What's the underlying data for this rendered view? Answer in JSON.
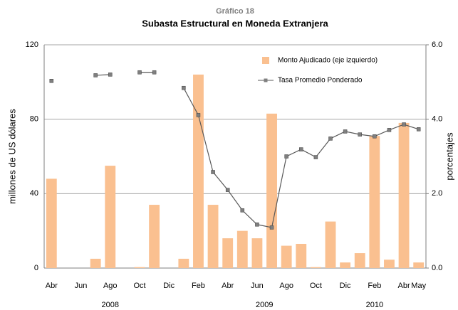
{
  "chart_data": {
    "type": "bar_line",
    "subtitle": "Gráfico 18",
    "title": "Subasta Estructural en Moneda Extranjera",
    "y_label": "millones de US dólares",
    "y2_label": "porcentajes",
    "categories": [
      "Abr",
      null,
      "Jun",
      null,
      "Ago",
      null,
      "Oct",
      null,
      "Dic",
      null,
      "Feb",
      null,
      "Abr",
      null,
      "Jun",
      null,
      "Ago",
      null,
      "Oct",
      null,
      "Dic",
      null,
      "Feb",
      null,
      "Abr",
      "May"
    ],
    "year_labels": [
      "2008",
      "2009",
      "2010"
    ],
    "series": [
      {
        "name": "Monto Ajudicado  (eje izquierdo)",
        "type": "bar",
        "color": "#fac090",
        "values": [
          48,
          0,
          0,
          5,
          55,
          0,
          0.5,
          34,
          0,
          5,
          104,
          34,
          16,
          20,
          16,
          83,
          12,
          13,
          0.5,
          25,
          3,
          8,
          71,
          4.5,
          78,
          3
        ]
      },
      {
        "name": "Tasa Promedio Ponderado",
        "type": "line",
        "axis": "y2",
        "color": "#595959",
        "values": [
          5.03,
          null,
          null,
          5.18,
          5.2,
          null,
          5.26,
          5.26,
          null,
          4.84,
          4.11,
          2.58,
          2.1,
          1.55,
          1.17,
          1.09,
          3.0,
          3.19,
          2.98,
          3.48,
          3.67,
          3.59,
          3.54,
          3.71,
          3.86,
          3.73
        ]
      }
    ],
    "ylim": [
      0,
      120
    ],
    "yticks": [
      0,
      40,
      80,
      120
    ],
    "y2lim": [
      0,
      6
    ],
    "y2ticks": [
      {
        "value": 0,
        "label": "0.0"
      },
      {
        "value": 2,
        "label": "2.0"
      },
      {
        "value": 4,
        "label": "4.0"
      },
      {
        "value": 6,
        "label": "6.0"
      }
    ],
    "grid": true
  }
}
